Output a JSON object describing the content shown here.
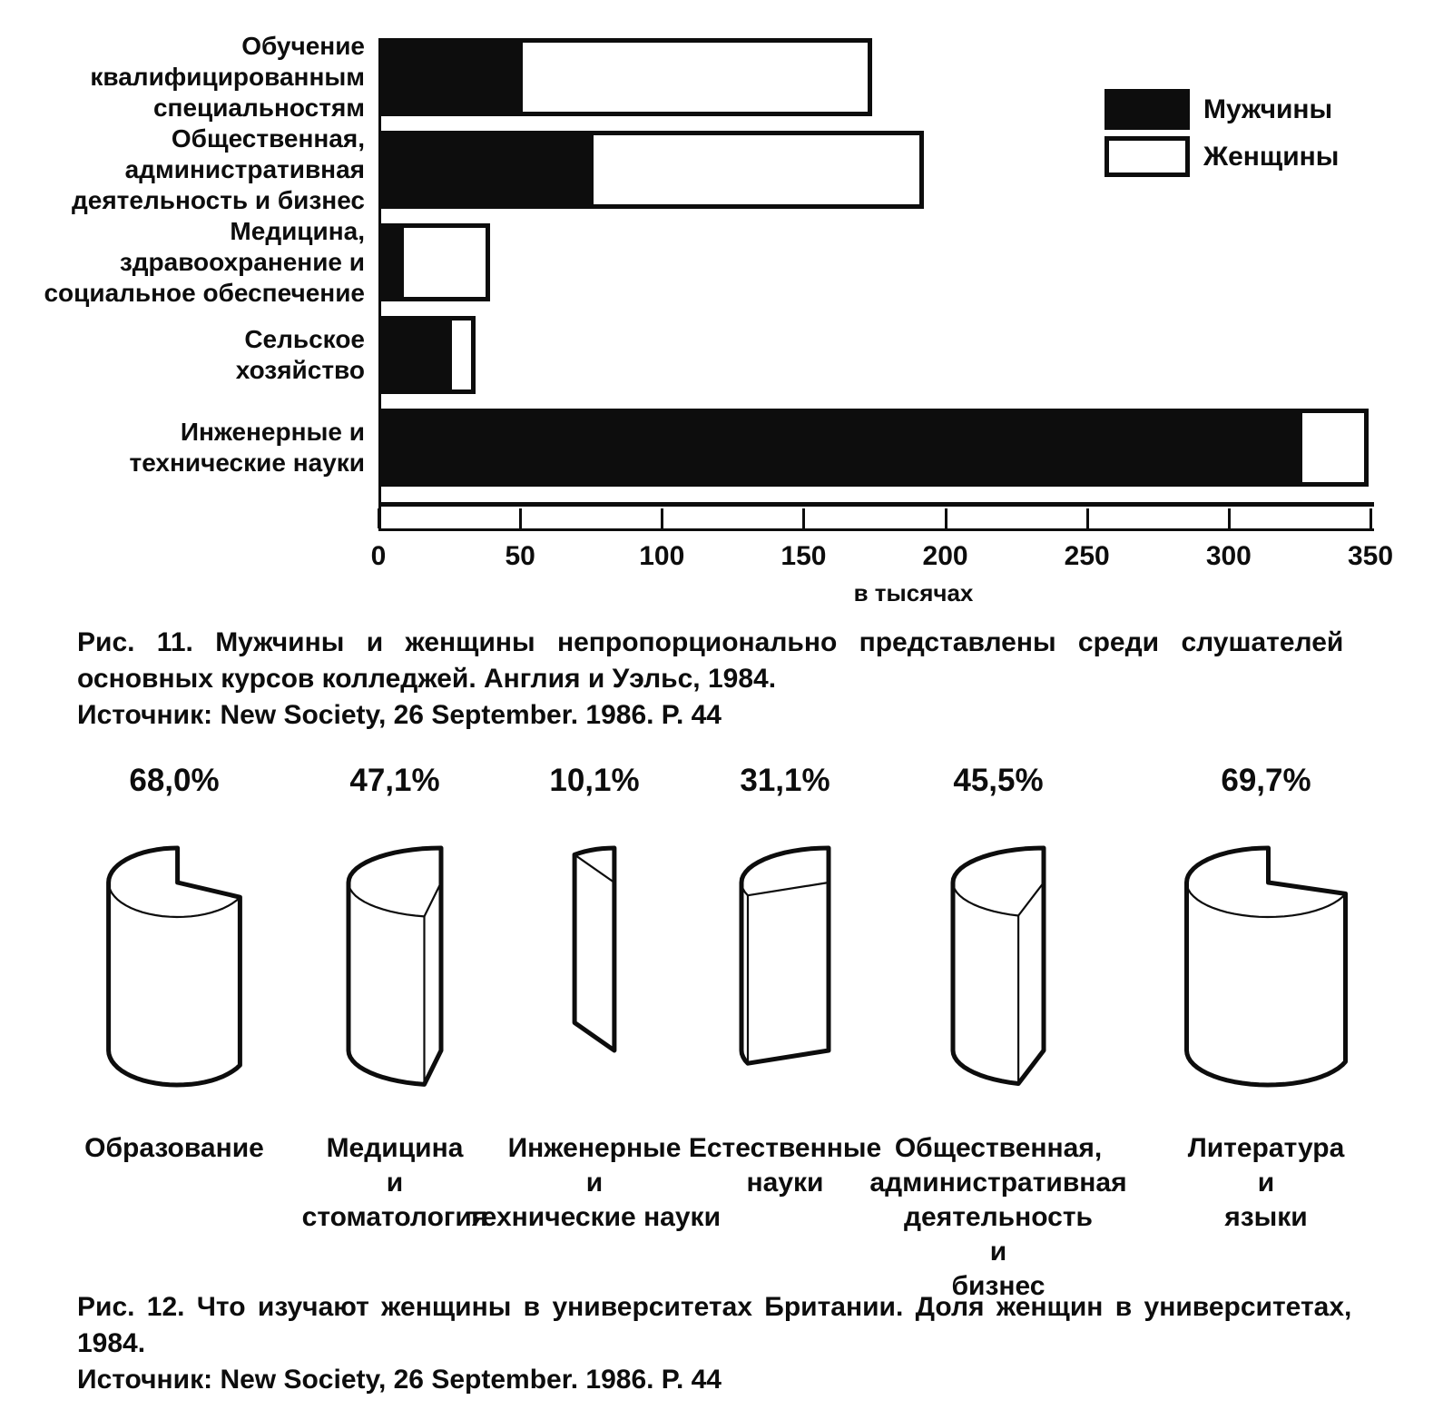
{
  "page": {
    "background": "#ffffff",
    "ink": "#0d0d0d"
  },
  "chart_data": [
    {
      "id": "fig11",
      "type": "bar",
      "orientation": "horizontal",
      "stacked": true,
      "categories": [
        [
          "Обучение",
          "квалифицированным",
          "специальностям"
        ],
        [
          "Общественная,",
          "административная",
          "деятельность и бизнес"
        ],
        [
          "Медицина,",
          "здравоохранение и",
          "социальное обеспечение"
        ],
        [
          "Сельское",
          "хозяйство"
        ],
        [
          "Инженерные и",
          "технические науки"
        ]
      ],
      "series": [
        {
          "name": "Мужчины",
          "color": "#0d0d0d",
          "values": [
            50,
            75,
            8,
            25,
            325
          ]
        },
        {
          "name": "Женщины",
          "color": "#ffffff",
          "values": [
            125,
            118,
            32,
            10,
            25
          ]
        }
      ],
      "xlim": [
        0,
        350
      ],
      "x_ticks": [
        0,
        50,
        100,
        150,
        200,
        250,
        300,
        350
      ],
      "x_unit_label": "в тысячах",
      "legend_position": "top-right",
      "grid": false,
      "caption_lines": [
        "Рис. 11. Мужчины и женщины непропорционально представлены среди слушателей",
        "основных курсов колледжей. Англия и Уэльс, 1984.",
        "Источник: New Society, 26 September. 1986. P. 44"
      ]
    },
    {
      "id": "fig12",
      "type": "pie",
      "representation": "3d-cylinder-wedges",
      "items": [
        {
          "value_label": "68,0%",
          "value_pct": 68.0,
          "label_lines": [
            "Образование"
          ]
        },
        {
          "value_label": "47,1%",
          "value_pct": 47.1,
          "label_lines": [
            "Медицина",
            "и",
            "стоматология"
          ]
        },
        {
          "value_label": "10,1%",
          "value_pct": 10.1,
          "label_lines": [
            "Инженерные",
            "и",
            "технические науки"
          ]
        },
        {
          "value_label": "31,1%",
          "value_pct": 31.1,
          "label_lines": [
            "Естественные",
            "науки"
          ]
        },
        {
          "value_label": "45,5%",
          "value_pct": 45.5,
          "label_lines": [
            "Общественная,",
            "административная",
            "деятельность",
            "и",
            "бизнес"
          ]
        },
        {
          "value_label": "69,7%",
          "value_pct": 69.7,
          "label_lines": [
            "Литература",
            "и",
            "языки"
          ]
        }
      ],
      "caption_lines": [
        "Рис. 12.  Что изучают женщины в университетах Британии. Доля женщин в университетах,",
        "1984.",
        "Источник: New Society, 26 September. 1986. P. 44"
      ]
    }
  ]
}
